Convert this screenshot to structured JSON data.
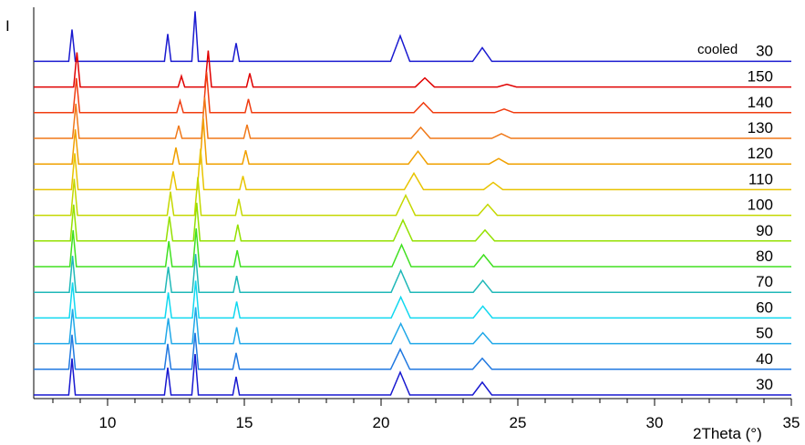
{
  "chart_data": {
    "type": "line",
    "xlabel": "2Theta (°)",
    "ylabel": "I",
    "annotation": "cooled",
    "xlim": [
      7.3,
      35
    ],
    "xticks": [
      10,
      15,
      20,
      25,
      30,
      35
    ],
    "xminorticks": [
      8,
      9,
      11,
      12,
      13,
      14,
      16,
      17,
      18,
      19,
      21,
      22,
      23,
      24,
      26,
      27,
      28,
      29,
      31,
      32,
      33,
      34
    ],
    "series": [
      {
        "name": "30",
        "color": "#1a1ad0",
        "x": [
          7.3,
          8.58,
          8.7,
          8.82,
          12.08,
          12.2,
          12.32,
          13.08,
          13.2,
          13.32,
          14.58,
          14.7,
          14.82,
          20.35,
          20.7,
          21.05,
          23.35,
          23.7,
          24.05,
          35
        ],
        "values": [
          0,
          0,
          35,
          0,
          0,
          30,
          0,
          0,
          55,
          0,
          0,
          20,
          0,
          0,
          28,
          0,
          0,
          15,
          0,
          0
        ]
      },
      {
        "name": "150",
        "color": "#e00000",
        "x": [
          7.3,
          8.76,
          8.88,
          9.0,
          12.58,
          12.7,
          12.82,
          13.56,
          13.68,
          13.8,
          15.08,
          15.2,
          15.32,
          21.25,
          21.6,
          21.95,
          24.25,
          24.6,
          24.95,
          35
        ],
        "values": [
          0,
          0,
          38,
          0,
          0,
          12,
          0,
          0,
          40,
          0,
          0,
          15,
          0,
          0,
          10,
          0,
          0,
          3,
          0,
          0
        ]
      },
      {
        "name": "140",
        "color": "#f03c10",
        "x": [
          7.3,
          8.74,
          8.86,
          8.98,
          12.53,
          12.65,
          12.77,
          13.5,
          13.62,
          13.74,
          15.03,
          15.15,
          15.27,
          21.2,
          21.55,
          21.9,
          24.15,
          24.5,
          24.85,
          35
        ],
        "values": [
          0,
          0,
          38,
          0,
          0,
          13,
          0,
          0,
          45,
          0,
          0,
          15,
          0,
          0,
          11,
          0,
          0,
          4,
          0,
          0
        ]
      },
      {
        "name": "130",
        "color": "#f07818",
        "x": [
          7.3,
          8.72,
          8.84,
          8.96,
          12.48,
          12.6,
          12.72,
          13.43,
          13.55,
          13.67,
          14.98,
          15.1,
          15.22,
          21.1,
          21.45,
          21.8,
          24.05,
          24.4,
          24.75,
          35
        ],
        "values": [
          0,
          0,
          38,
          0,
          0,
          14,
          0,
          0,
          45,
          0,
          0,
          15,
          0,
          0,
          12,
          0,
          0,
          5,
          0,
          0
        ]
      },
      {
        "name": "120",
        "color": "#f0a000",
        "x": [
          7.3,
          8.7,
          8.82,
          8.94,
          12.38,
          12.5,
          12.62,
          13.38,
          13.5,
          13.62,
          14.93,
          15.05,
          15.17,
          21.0,
          21.35,
          21.7,
          23.95,
          24.3,
          24.65,
          35
        ],
        "values": [
          0,
          0,
          38,
          0,
          0,
          18,
          0,
          0,
          50,
          0,
          0,
          15,
          0,
          0,
          14,
          0,
          0,
          6,
          0,
          0
        ]
      },
      {
        "name": "110",
        "color": "#e8c400",
        "x": [
          7.3,
          8.68,
          8.8,
          8.92,
          12.28,
          12.4,
          12.52,
          13.28,
          13.4,
          13.52,
          14.83,
          14.95,
          15.07,
          20.85,
          21.2,
          21.55,
          23.75,
          24.1,
          24.45,
          35
        ],
        "values": [
          0,
          0,
          40,
          0,
          0,
          20,
          0,
          0,
          45,
          0,
          0,
          15,
          0,
          0,
          18,
          0,
          0,
          8,
          0,
          0
        ]
      },
      {
        "name": "100",
        "color": "#c4d800",
        "x": [
          7.3,
          8.66,
          8.78,
          8.9,
          12.18,
          12.3,
          12.42,
          13.18,
          13.3,
          13.42,
          14.68,
          14.8,
          14.92,
          20.55,
          20.9,
          21.25,
          23.55,
          23.9,
          24.25,
          35
        ],
        "values": [
          0,
          0,
          40,
          0,
          0,
          26,
          0,
          0,
          42,
          0,
          0,
          18,
          0,
          0,
          22,
          0,
          0,
          12,
          0,
          0
        ]
      },
      {
        "name": "90",
        "color": "#94e000",
        "x": [
          7.3,
          8.64,
          8.76,
          8.88,
          12.14,
          12.26,
          12.38,
          13.14,
          13.26,
          13.38,
          14.64,
          14.76,
          14.88,
          20.45,
          20.8,
          21.15,
          23.45,
          23.8,
          24.15,
          35
        ],
        "values": [
          0,
          0,
          40,
          0,
          0,
          27,
          0,
          0,
          42,
          0,
          0,
          18,
          0,
          0,
          23,
          0,
          0,
          12,
          0,
          0
        ]
      },
      {
        "name": "80",
        "color": "#40e020",
        "x": [
          7.3,
          8.62,
          8.74,
          8.86,
          12.12,
          12.24,
          12.36,
          13.12,
          13.24,
          13.36,
          14.62,
          14.74,
          14.86,
          20.4,
          20.75,
          21.1,
          23.4,
          23.75,
          24.1,
          35
        ],
        "values": [
          0,
          0,
          40,
          0,
          0,
          28,
          0,
          0,
          42,
          0,
          0,
          18,
          0,
          0,
          24,
          0,
          0,
          13,
          0,
          0
        ]
      },
      {
        "name": "70",
        "color": "#20b8b8",
        "x": [
          7.3,
          8.6,
          8.72,
          8.84,
          12.1,
          12.22,
          12.34,
          13.1,
          13.22,
          13.34,
          14.6,
          14.72,
          14.84,
          20.37,
          20.72,
          21.07,
          23.37,
          23.72,
          24.07,
          35
        ],
        "values": [
          0,
          0,
          40,
          0,
          0,
          28,
          0,
          0,
          42,
          0,
          0,
          18,
          0,
          0,
          24,
          0,
          0,
          13,
          0,
          0
        ]
      },
      {
        "name": "60",
        "color": "#10d8f0",
        "x": [
          7.3,
          8.6,
          8.72,
          8.84,
          12.1,
          12.22,
          12.34,
          13.1,
          13.22,
          13.34,
          14.6,
          14.72,
          14.84,
          20.37,
          20.72,
          21.07,
          23.37,
          23.72,
          24.07,
          35
        ],
        "values": [
          0,
          0,
          39,
          0,
          0,
          28,
          0,
          0,
          41,
          0,
          0,
          18,
          0,
          0,
          23,
          0,
          0,
          13,
          0,
          0
        ]
      },
      {
        "name": "50",
        "color": "#20a8e8",
        "x": [
          7.3,
          8.6,
          8.72,
          8.84,
          12.1,
          12.22,
          12.34,
          13.1,
          13.22,
          13.34,
          14.6,
          14.72,
          14.84,
          20.37,
          20.72,
          21.07,
          23.37,
          23.72,
          24.07,
          35
        ],
        "values": [
          0,
          0,
          38,
          0,
          0,
          28,
          0,
          0,
          40,
          0,
          0,
          18,
          0,
          0,
          22,
          0,
          0,
          12,
          0,
          0
        ]
      },
      {
        "name": "40",
        "color": "#2078e0",
        "x": [
          7.3,
          8.58,
          8.7,
          8.82,
          12.08,
          12.2,
          12.32,
          13.08,
          13.2,
          13.32,
          14.58,
          14.7,
          14.82,
          20.35,
          20.7,
          21.05,
          23.35,
          23.7,
          24.05,
          35
        ],
        "values": [
          0,
          0,
          38,
          0,
          0,
          28,
          0,
          0,
          40,
          0,
          0,
          18,
          0,
          0,
          22,
          0,
          0,
          12,
          0,
          0
        ]
      },
      {
        "name": "30",
        "color": "#1818d0",
        "x": [
          7.3,
          8.58,
          8.7,
          8.82,
          12.08,
          12.2,
          12.32,
          13.08,
          13.2,
          13.32,
          14.58,
          14.7,
          14.82,
          20.35,
          20.7,
          21.05,
          23.35,
          23.7,
          24.05,
          35
        ],
        "values": [
          0,
          0,
          40,
          0,
          0,
          30,
          0,
          0,
          45,
          0,
          0,
          20,
          0,
          0,
          25,
          0,
          0,
          14,
          0,
          0
        ]
      }
    ]
  }
}
